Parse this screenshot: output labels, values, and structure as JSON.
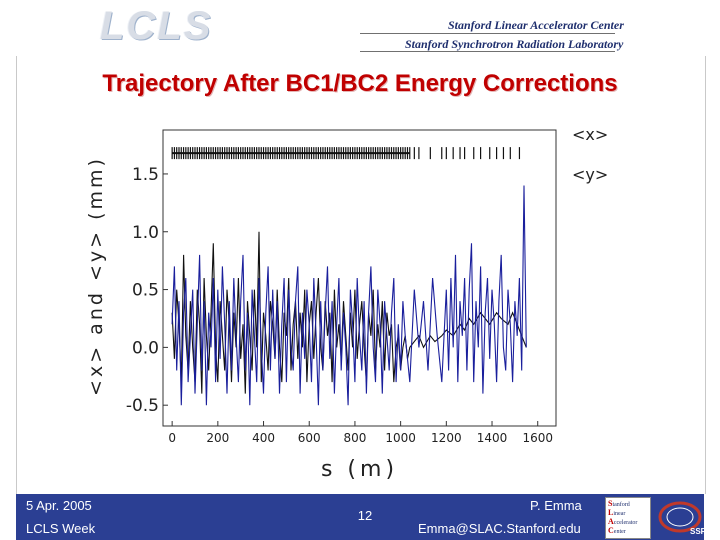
{
  "header": {
    "logo_text": "LCLS",
    "lab_line1": "Stanford Linear Accelerator Center",
    "lab_line2": "Stanford Synchrotron Radiation Laboratory"
  },
  "slide": {
    "title": "Trajectory After BC1/BC2 Energy Corrections"
  },
  "chart_data": {
    "type": "line",
    "title": "Trajectory After BC1/BC2 Energy Corrections",
    "xlabel": "s (m)",
    "ylabel": "<x> and <y> (mm)",
    "xlim": [
      -40,
      1680
    ],
    "ylim": [
      -0.68,
      1.88
    ],
    "xticks": [
      "0",
      "200",
      "400",
      "600",
      "800",
      "1000",
      "1200",
      "1400",
      "1600"
    ],
    "yticks": [
      "-0.5",
      "0.0",
      "0.5",
      "1.0",
      "1.5"
    ],
    "legend": [
      "<x>",
      "<y>"
    ],
    "legend_position": "outside right",
    "grid": false,
    "colors": {
      "x": "#111111",
      "y": "#1a1f9c"
    },
    "markers_y": 1.68,
    "markers_x": [
      0,
      10,
      20,
      30,
      40,
      50,
      60,
      70,
      80,
      90,
      100,
      110,
      120,
      130,
      140,
      150,
      160,
      170,
      180,
      190,
      200,
      210,
      220,
      230,
      240,
      250,
      260,
      270,
      280,
      290,
      300,
      310,
      320,
      330,
      340,
      350,
      360,
      370,
      380,
      390,
      400,
      410,
      420,
      430,
      440,
      450,
      460,
      470,
      480,
      490,
      500,
      510,
      520,
      530,
      540,
      550,
      560,
      570,
      580,
      590,
      600,
      610,
      620,
      630,
      640,
      650,
      660,
      670,
      680,
      690,
      700,
      710,
      720,
      730,
      740,
      750,
      760,
      770,
      780,
      790,
      800,
      810,
      820,
      830,
      840,
      850,
      860,
      870,
      880,
      890,
      900,
      910,
      920,
      930,
      940,
      950,
      960,
      970,
      980,
      990,
      1000,
      1010,
      1020,
      1030,
      1040,
      1060,
      1080,
      1130,
      1180,
      1200,
      1230,
      1260,
      1280,
      1320,
      1350,
      1390,
      1420,
      1450,
      1480,
      1520
    ],
    "series": [
      {
        "name": "<x>",
        "x": [
          0,
          10,
          20,
          30,
          40,
          50,
          60,
          70,
          80,
          90,
          100,
          110,
          120,
          130,
          140,
          150,
          160,
          170,
          180,
          190,
          200,
          210,
          220,
          230,
          240,
          250,
          260,
          270,
          280,
          290,
          300,
          310,
          320,
          330,
          340,
          350,
          360,
          370,
          380,
          390,
          400,
          410,
          420,
          430,
          440,
          450,
          460,
          470,
          480,
          490,
          500,
          510,
          520,
          530,
          540,
          550,
          560,
          570,
          580,
          590,
          600,
          610,
          620,
          630,
          640,
          650,
          660,
          670,
          680,
          690,
          700,
          710,
          720,
          730,
          740,
          750,
          760,
          770,
          780,
          790,
          800,
          810,
          820,
          830,
          840,
          850,
          860,
          870,
          880,
          890,
          900,
          910,
          920,
          930,
          940,
          950,
          960,
          970,
          980,
          990,
          1000,
          1010,
          1020,
          1030,
          1040,
          1060,
          1080,
          1100,
          1130,
          1150,
          1180,
          1200,
          1230,
          1260,
          1280,
          1300,
          1320,
          1350,
          1370,
          1390,
          1420,
          1440,
          1470,
          1490,
          1510,
          1530,
          1550
        ],
        "values": [
          0.3,
          -0.1,
          0.5,
          0.2,
          -0.3,
          0.8,
          0.1,
          -0.2,
          0.4,
          0.0,
          -0.3,
          0.5,
          0.2,
          -0.4,
          0.6,
          0.1,
          -0.2,
          0.3,
          0.9,
          0.0,
          -0.3,
          0.4,
          0.1,
          -0.2,
          0.5,
          0.2,
          -0.3,
          0.3,
          0.0,
          0.6,
          -0.1,
          0.2,
          -0.4,
          0.4,
          0.1,
          -0.2,
          0.5,
          0.0,
          1.0,
          -0.3,
          0.3,
          0.1,
          -0.2,
          0.4,
          0.2,
          -0.1,
          0.5,
          0.0,
          -0.3,
          0.3,
          0.1,
          0.6,
          -0.2,
          0.2,
          0.4,
          -0.1,
          0.3,
          0.0,
          0.5,
          -0.3,
          0.2,
          0.4,
          -0.1,
          0.3,
          0.6,
          0.0,
          -0.2,
          0.4,
          0.1,
          0.3,
          -0.3,
          0.5,
          0.0,
          0.2,
          -0.1,
          0.4,
          0.1,
          -0.2,
          0.3,
          0.0,
          0.5,
          -0.1,
          0.2,
          0.4,
          0.0,
          -0.3,
          0.3,
          0.1,
          0.5,
          -0.2,
          0.2,
          0.0,
          0.4,
          -0.2,
          0.3,
          0.1,
          0.2,
          -0.3,
          0.0,
          0.1,
          -0.2,
          0.0,
          0.1,
          -0.1,
          0.0,
          0.05,
          0.1,
          0.0,
          0.1,
          0.05,
          0.1,
          0.15,
          0.1,
          0.2,
          0.15,
          0.25,
          0.2,
          0.3,
          0.25,
          0.2,
          0.3,
          0.25,
          0.2,
          0.3,
          0.2,
          0.1,
          0.0
        ]
      },
      {
        "name": "<y>",
        "x": [
          0,
          10,
          20,
          30,
          40,
          50,
          60,
          70,
          80,
          90,
          100,
          110,
          120,
          130,
          140,
          150,
          160,
          170,
          180,
          190,
          200,
          210,
          220,
          230,
          240,
          250,
          260,
          270,
          280,
          290,
          300,
          310,
          320,
          330,
          340,
          350,
          360,
          370,
          380,
          390,
          400,
          410,
          420,
          430,
          440,
          450,
          460,
          470,
          480,
          490,
          500,
          510,
          520,
          530,
          540,
          550,
          560,
          570,
          580,
          590,
          600,
          610,
          620,
          630,
          640,
          650,
          660,
          670,
          680,
          690,
          700,
          710,
          720,
          730,
          740,
          750,
          760,
          770,
          780,
          790,
          800,
          810,
          820,
          830,
          840,
          850,
          860,
          870,
          880,
          890,
          900,
          910,
          920,
          930,
          940,
          950,
          960,
          970,
          980,
          990,
          1000,
          1010,
          1020,
          1040,
          1060,
          1080,
          1100,
          1120,
          1140,
          1160,
          1180,
          1200,
          1210,
          1220,
          1230,
          1240,
          1250,
          1260,
          1270,
          1280,
          1290,
          1300,
          1310,
          1320,
          1330,
          1340,
          1350,
          1360,
          1370,
          1380,
          1390,
          1400,
          1410,
          1420,
          1430,
          1440,
          1450,
          1460,
          1470,
          1480,
          1490,
          1500,
          1510,
          1520,
          1530,
          1540,
          1550
        ],
        "values": [
          0.2,
          0.7,
          -0.2,
          0.4,
          -0.5,
          0.3,
          0.6,
          -0.3,
          0.1,
          0.5,
          -0.4,
          0.2,
          0.8,
          -0.2,
          0.4,
          -0.5,
          0.3,
          0.0,
          0.6,
          -0.3,
          0.5,
          -0.1,
          0.7,
          0.2,
          -0.4,
          0.4,
          -0.2,
          0.6,
          0.1,
          -0.3,
          0.4,
          0.8,
          -0.2,
          0.3,
          -0.5,
          0.5,
          0.1,
          -0.3,
          0.6,
          0.0,
          -0.4,
          0.3,
          0.7,
          -0.2,
          0.5,
          -0.1,
          0.4,
          -0.4,
          0.2,
          0.6,
          -0.3,
          0.5,
          0.0,
          -0.2,
          0.4,
          0.7,
          -0.4,
          0.3,
          -0.1,
          0.5,
          0.2,
          -0.3,
          0.6,
          0.1,
          -0.5,
          0.4,
          -0.2,
          0.3,
          0.7,
          -0.1,
          0.4,
          -0.4,
          0.2,
          0.6,
          -0.2,
          0.3,
          0.0,
          -0.5,
          0.5,
          0.2,
          -0.3,
          0.6,
          0.1,
          -0.2,
          0.4,
          -0.4,
          0.3,
          0.7,
          0.0,
          -0.3,
          0.5,
          0.2,
          -0.4,
          0.4,
          0.1,
          -0.2,
          0.3,
          0.6,
          -0.3,
          0.2,
          -0.2,
          0.4,
          0.1,
          -0.3,
          0.5,
          0.0,
          0.4,
          -0.2,
          0.6,
          0.1,
          -0.3,
          0.5,
          -0.2,
          0.6,
          0.0,
          0.8,
          -0.3,
          0.4,
          0.1,
          0.6,
          -0.2,
          0.5,
          0.9,
          -0.3,
          0.4,
          0.0,
          0.7,
          -0.4,
          0.3,
          0.6,
          -0.1,
          0.5,
          0.2,
          -0.3,
          0.4,
          0.8,
          0.0,
          -0.2,
          0.5,
          0.2,
          -0.3,
          0.4,
          0.1,
          0.6,
          -0.2,
          1.4,
          0.0
        ]
      }
    ]
  },
  "footer": {
    "date": "5 Apr. 2005",
    "event": "LCLS Week",
    "page": "12",
    "author": "P. Emma",
    "email": "Emma@SLAC.Stanford.edu",
    "slac_lines": [
      "Stanford",
      "Linear",
      "Accelerator",
      "Center"
    ],
    "ring_label": "SSRL"
  }
}
